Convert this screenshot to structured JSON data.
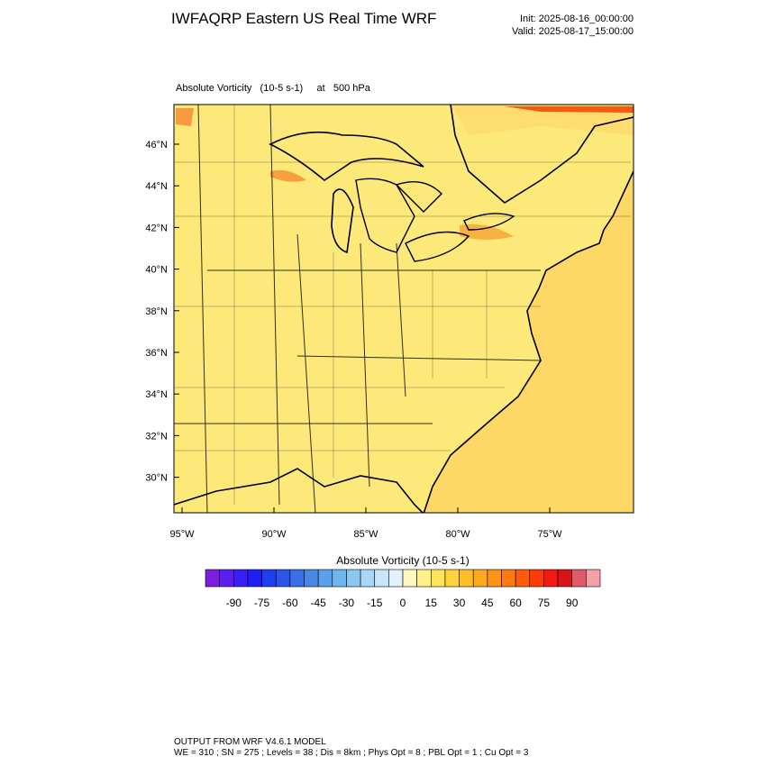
{
  "header": {
    "title": "IWFAQRP Eastern US Real Time WRF",
    "init": "Init: 2025-08-16_00:00:00",
    "valid": "Valid: 2025-08-17_15:00:00"
  },
  "map": {
    "field_label": "Absolute Vorticity   (10-5 s-1)     at   500 hPa",
    "lat_labels": [
      "46°N",
      "44°N",
      "42°N",
      "40°N",
      "38°N",
      "36°N",
      "34°N",
      "32°N",
      "30°N"
    ],
    "lon_labels": [
      "95°W",
      "90°W",
      "85°W",
      "80°W",
      "75°W"
    ]
  },
  "colorbar": {
    "title": "Absolute Vorticity  (10-5 s-1)",
    "lim": [
      -105,
      105
    ],
    "ticks": [
      -90,
      -75,
      -60,
      -45,
      -30,
      -15,
      0,
      15,
      30,
      45,
      60,
      75,
      90
    ],
    "colors": [
      "#7a1fe0",
      "#5a1ff0",
      "#3a1ff5",
      "#1f1ff5",
      "#1f3ef0",
      "#2a55e8",
      "#3a6fe6",
      "#4a88e8",
      "#5aa0ea",
      "#6fb5ee",
      "#8ac8f2",
      "#a6d8f5",
      "#c4e6f8",
      "#e0f2fb",
      "#fff6c0",
      "#fff08a",
      "#ffe45a",
      "#ffd23a",
      "#ffbe28",
      "#ffa81c",
      "#ff9212",
      "#ff7a0c",
      "#ff5a08",
      "#ff3a06",
      "#f01a10",
      "#d8141a",
      "#e05a6a",
      "#f5a0a8"
    ]
  },
  "footer": {
    "line1": "OUTPUT FROM WRF V4.6.1 MODEL",
    "line2": "WE = 310 ; SN = 275 ; Levels = 38 ; Dis = 8km ; Phys Opt = 8 ; PBL Opt = 1 ; Cu Opt = 3"
  }
}
